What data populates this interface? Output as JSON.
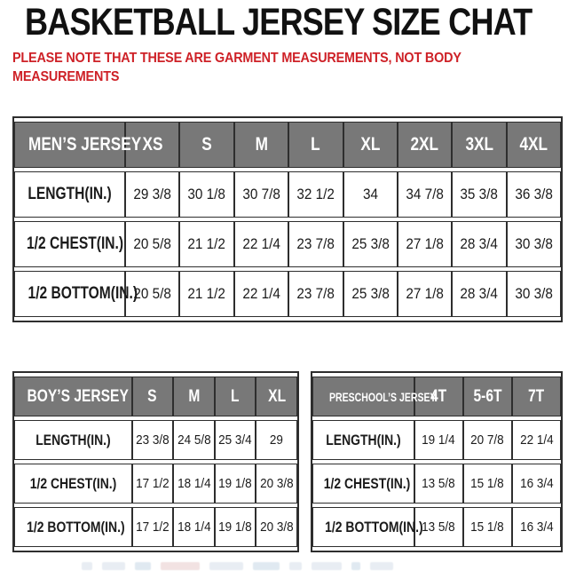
{
  "header": {
    "title": "BASKETBALL JERSEY SIZE CHAT",
    "note_line1": "PLEASE NOTE THAT THESE ARE GARMENT MEASUREMENTS, NOT BODY",
    "note_line2": "MEASUREMENTS"
  },
  "colors": {
    "note_red": "#ce2127",
    "table_header_gray": "#787878",
    "table_border": "#2e2e2e",
    "text_black": "#1b1b1b"
  },
  "tables": {
    "mens": {
      "header": [
        "MEN’S JERSEY",
        "XS",
        "S",
        "M",
        "L",
        "XL",
        "2XL",
        "3XL",
        "4XL"
      ],
      "rows": [
        {
          "label": "LENGTH(IN.)",
          "values": [
            "29 3/8",
            "30 1/8",
            "30 7/8",
            "32 1/2",
            "34",
            "34 7/8",
            "35 3/8",
            "36 3/8"
          ]
        },
        {
          "label": "1/2 CHEST(IN.)",
          "values": [
            "20 5/8",
            "21 1/2",
            "22 1/4",
            "23 7/8",
            "25 3/8",
            "27 1/8",
            "28 3/4",
            "30 3/8"
          ]
        },
        {
          "label": "1/2 BOTTOM(IN.)",
          "values": [
            "20 5/8",
            "21 1/2",
            "22 1/4",
            "23 7/8",
            "25 3/8",
            "27 1/8",
            "28 3/4",
            "30 3/8"
          ]
        }
      ]
    },
    "boys": {
      "header": [
        "BOY’S JERSEY",
        "S",
        "M",
        "L",
        "XL"
      ],
      "rows": [
        {
          "label": "LENGTH(IN.)",
          "values": [
            "23 3/8",
            "24 5/8",
            "25 3/4",
            "29"
          ]
        },
        {
          "label": "1/2 CHEST(IN.)",
          "values": [
            "17 1/2",
            "18 1/4",
            "19 1/8",
            "20 3/8"
          ]
        },
        {
          "label": "1/2 BOTTOM(IN.)",
          "values": [
            "17 1/2",
            "18 1/4",
            "19 1/8",
            "20 3/8"
          ]
        }
      ]
    },
    "preschools": {
      "header": [
        "PRESCHOOL’S JERSEY",
        "4T",
        "5-6T",
        "7T"
      ],
      "rows": [
        {
          "label": "LENGTH(IN.)",
          "values": [
            "19 1/4",
            "20 7/8",
            "22 1/4"
          ]
        },
        {
          "label": "1/2 CHEST(IN.)",
          "values": [
            "13 5/8",
            "15 1/8",
            "16 3/4"
          ]
        },
        {
          "label": "1/2 BOTTOM(IN.)",
          "values": [
            "13 5/8",
            "15 1/8",
            "16 3/4"
          ]
        }
      ]
    }
  }
}
